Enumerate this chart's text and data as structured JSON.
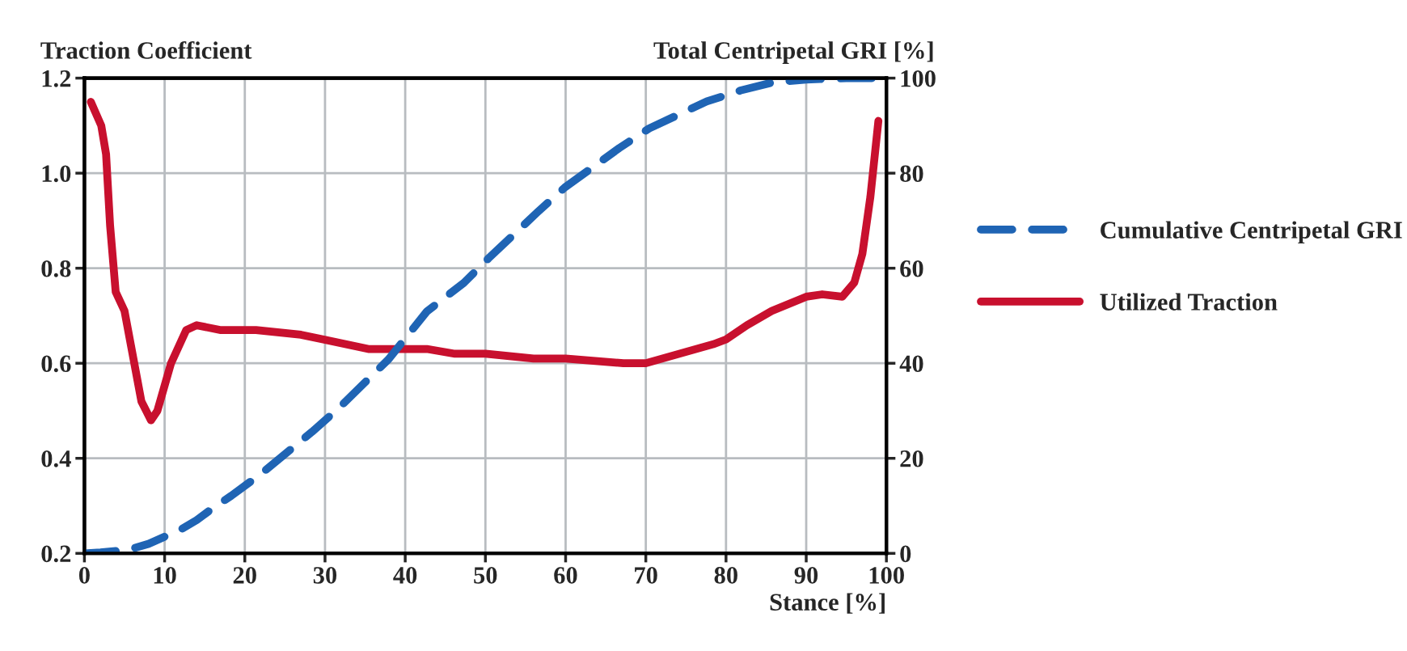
{
  "chart_data": {
    "type": "line",
    "xlabel": "Stance [%]",
    "ylabel": "Traction Coefficient",
    "y2label": "Total Centripetal GRI [%]",
    "xlim": [
      0,
      100
    ],
    "xticks": [
      0,
      10,
      20,
      30,
      40,
      50,
      60,
      70,
      80,
      90,
      100
    ],
    "ylim": [
      0.2,
      1.2
    ],
    "yticks": [
      {
        "value": 0.2,
        "label": "0.2"
      },
      {
        "value": 0.4,
        "label": "0.4"
      },
      {
        "value": 0.6,
        "label": "0.6"
      },
      {
        "value": 0.8,
        "label": "0.8"
      },
      {
        "value": 1.0,
        "label": "1.0"
      },
      {
        "value": 1.2,
        "label": "1.2"
      }
    ],
    "y2lim": [
      0,
      100
    ],
    "y2ticks": [
      0,
      20,
      40,
      60,
      80,
      100
    ],
    "grid": true,
    "legend": "right",
    "series": [
      {
        "name": "Cumulative Centripetal GRI",
        "color": "#1f64b4",
        "axis": "y2",
        "line_style": "dashed",
        "x": [
          0,
          2,
          4,
          6,
          8,
          10,
          12,
          14,
          16,
          18.3,
          22,
          28.4,
          31.8,
          37.9,
          42.7,
          47.3,
          50.4,
          56.5,
          59.9,
          66.7,
          70.4,
          77.6,
          81.8,
          85.8,
          90,
          95,
          100
        ],
        "values": [
          0,
          0.2,
          0.5,
          1,
          2,
          3.5,
          5,
          7,
          9.5,
          12.1,
          16.7,
          25.6,
          30.7,
          40.8,
          50.9,
          56.9,
          62.1,
          71.8,
          77,
          85.3,
          89.4,
          95.1,
          97.4,
          99.1,
          99.7,
          100,
          100
        ]
      },
      {
        "name": "Utilized Traction",
        "color": "#c8102e",
        "axis": "y",
        "line_style": "solid",
        "x": [
          0.8,
          2.1,
          2.7,
          3.2,
          3.9,
          5.0,
          7.1,
          8.3,
          9.1,
          10.8,
          12.7,
          14.0,
          16.9,
          18.9,
          21.4,
          27.0,
          29.8,
          35.4,
          42.7,
          46.2,
          50,
          56,
          60,
          67.2,
          70,
          74.2,
          78.4,
          80,
          82.6,
          85.7,
          90,
          92,
          94.5,
          96,
          97,
          98,
          99
        ],
        "values": [
          1.15,
          1.1,
          1.04,
          0.89,
          0.75,
          0.71,
          0.52,
          0.48,
          0.5,
          0.6,
          0.67,
          0.68,
          0.67,
          0.67,
          0.67,
          0.66,
          0.65,
          0.63,
          0.63,
          0.62,
          0.62,
          0.61,
          0.61,
          0.6,
          0.6,
          0.62,
          0.64,
          0.65,
          0.68,
          0.71,
          0.74,
          0.745,
          0.74,
          0.77,
          0.83,
          0.95,
          1.11
        ]
      }
    ]
  }
}
